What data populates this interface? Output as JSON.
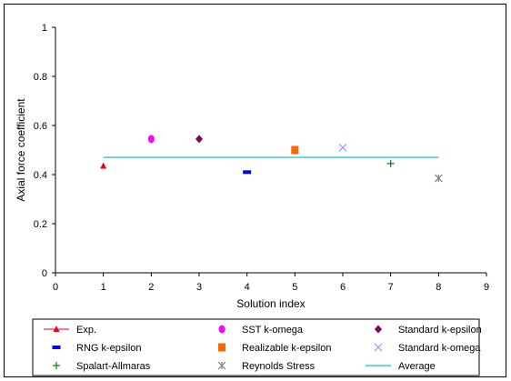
{
  "chart_data": {
    "type": "scatter",
    "title": "",
    "xlabel": "Solution index",
    "ylabel": "Axial force coefficient",
    "xlim": [
      0,
      9
    ],
    "ylim": [
      0,
      1
    ],
    "x_ticks": [
      "0",
      "1",
      "2",
      "3",
      "4",
      "5",
      "6",
      "7",
      "8",
      "9"
    ],
    "y_ticks": [
      "0",
      "0.2",
      "0.4",
      "0.6",
      "0.8",
      "1"
    ],
    "grid": false,
    "legend_position": "bottom",
    "series": [
      {
        "name": "Exp.",
        "marker": "triangle",
        "color": "#e8001c",
        "x": [
          1
        ],
        "y": [
          0.435
        ]
      },
      {
        "name": "SST k-omega",
        "marker": "circle",
        "color": "#ff00ff",
        "x": [
          2
        ],
        "y": [
          0.545
        ]
      },
      {
        "name": "Standard k-epsilon",
        "marker": "diamond",
        "color": "#800060",
        "x": [
          3
        ],
        "y": [
          0.545
        ]
      },
      {
        "name": "RNG k-epsilon",
        "marker": "dash",
        "color": "#0000ff",
        "x": [
          4
        ],
        "y": [
          0.41
        ]
      },
      {
        "name": "Realizable k-epsilon",
        "marker": "square",
        "color": "#ff6600",
        "x": [
          5
        ],
        "y": [
          0.5
        ]
      },
      {
        "name": "Standard k-omega",
        "marker": "x",
        "color": "#9999ff",
        "x": [
          6
        ],
        "y": [
          0.51
        ]
      },
      {
        "name": "Spalart-Allmaras",
        "marker": "plus",
        "color": "#008000",
        "x": [
          7
        ],
        "y": [
          0.445
        ]
      },
      {
        "name": "Reynolds Stress",
        "marker": "asterisk",
        "color": "#808080",
        "x": [
          8
        ],
        "y": [
          0.385
        ]
      },
      {
        "name": "Average",
        "marker": "line",
        "color": "#33ccee",
        "x": [
          1,
          8
        ],
        "y": [
          0.47,
          0.47
        ]
      }
    ]
  }
}
